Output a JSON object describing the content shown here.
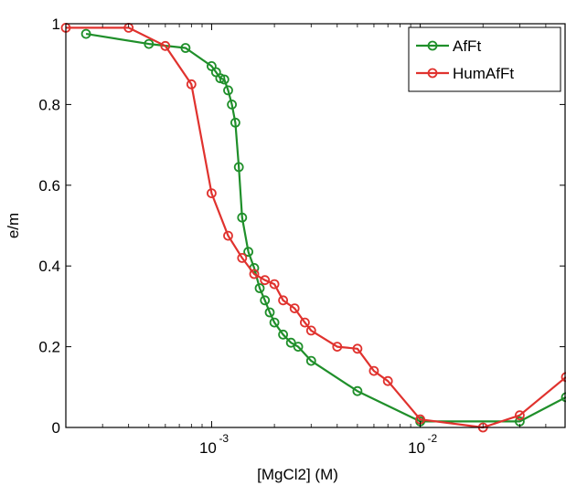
{
  "chart_data": {
    "type": "line",
    "xlabel": "[MgCl2] (M)",
    "ylabel": "e/m",
    "xscale": "log",
    "xlim": [
      0.0002,
      0.05
    ],
    "ylim": [
      0,
      1
    ],
    "x_tick_labels": [
      "10",
      "10"
    ],
    "x_tick_exponents": [
      "-3",
      "-2"
    ],
    "x_tick_values": [
      0.001,
      0.01
    ],
    "y_ticks": [
      0,
      0.2,
      0.4,
      0.6,
      0.8,
      1
    ],
    "y_tick_labels": [
      "0",
      "0.2",
      "0.4",
      "0.6",
      "0.8",
      "1"
    ],
    "legend_position": "top-right",
    "marker": "circle",
    "series": [
      {
        "name": "AfFt",
        "color": "#1f8f2a",
        "x": [
          0.00025,
          0.0005,
          0.00075,
          0.001,
          0.00105,
          0.0011,
          0.00115,
          0.0012,
          0.00125,
          0.0013,
          0.00135,
          0.0014,
          0.0015,
          0.0016,
          0.0017,
          0.0018,
          0.0019,
          0.002,
          0.0022,
          0.0024,
          0.0026,
          0.003,
          0.005,
          0.01,
          0.03,
          0.05
        ],
        "y": [
          0.975,
          0.95,
          0.94,
          0.895,
          0.88,
          0.865,
          0.862,
          0.835,
          0.8,
          0.755,
          0.645,
          0.52,
          0.435,
          0.395,
          0.345,
          0.315,
          0.285,
          0.26,
          0.23,
          0.21,
          0.2,
          0.165,
          0.09,
          0.015,
          0.015,
          0.075
        ]
      },
      {
        "name": "HumAfFt",
        "color": "#e0322e",
        "x": [
          0.0002,
          0.0004,
          0.0006,
          0.0008,
          0.001,
          0.0012,
          0.0014,
          0.0016,
          0.0018,
          0.002,
          0.0022,
          0.0025,
          0.0028,
          0.003,
          0.004,
          0.005,
          0.006,
          0.007,
          0.01,
          0.02,
          0.03,
          0.05
        ],
        "y": [
          0.99,
          0.99,
          0.945,
          0.85,
          0.58,
          0.475,
          0.42,
          0.38,
          0.365,
          0.355,
          0.315,
          0.295,
          0.26,
          0.24,
          0.2,
          0.195,
          0.14,
          0.115,
          0.02,
          0.0,
          0.03,
          0.125
        ]
      }
    ]
  }
}
